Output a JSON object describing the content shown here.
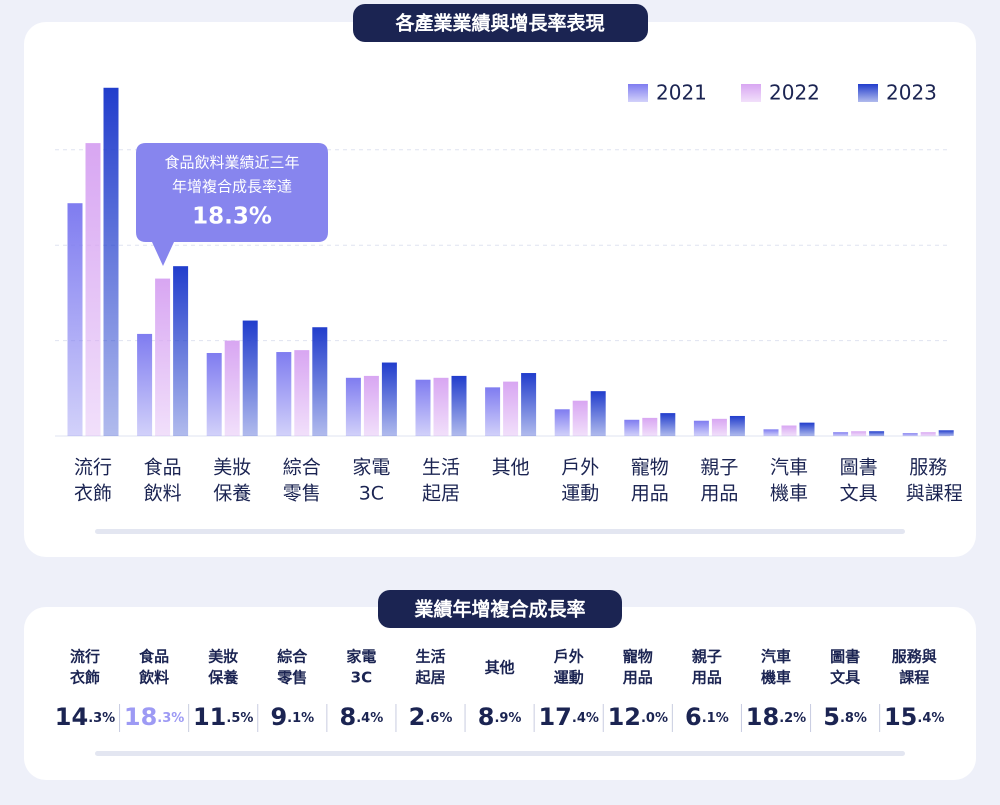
{
  "chart_data": {
    "type": "bar",
    "title": "各產業業績與增長率表現",
    "categories": [
      [
        "流行",
        "衣飾"
      ],
      [
        "食品",
        "飲料"
      ],
      [
        "美妝",
        "保養"
      ],
      [
        "綜合",
        "零售"
      ],
      [
        "家電",
        "3C"
      ],
      [
        "生活",
        "起居"
      ],
      [
        "其他"
      ],
      [
        "戶外",
        "運動"
      ],
      [
        "寵物",
        "用品"
      ],
      [
        "親子",
        "用品"
      ],
      [
        "汽車",
        "機車"
      ],
      [
        "圖書",
        "文具"
      ],
      [
        "服務",
        "與課程"
      ]
    ],
    "series": [
      {
        "name": "2021",
        "color": "#7f7cf0",
        "values": [
          244,
          107,
          87,
          88,
          61,
          59,
          51,
          28,
          17,
          16,
          7,
          4,
          3
        ]
      },
      {
        "name": "2022",
        "color": "#d8a6f2",
        "values": [
          307,
          165,
          100,
          90,
          63,
          61,
          57,
          37,
          19,
          18,
          11,
          5,
          4
        ]
      },
      {
        "name": "2023",
        "color": "#213dcc",
        "values": [
          365,
          178,
          121,
          114,
          77,
          63,
          66,
          47,
          24,
          21,
          14,
          5,
          6
        ]
      }
    ],
    "ylim": [
      0,
      370
    ],
    "yticks": [
      0,
      100,
      200,
      300
    ],
    "ytick_labels": false,
    "grid": true,
    "legend": "top-right",
    "annotation": [
      "食品飲料業績近三年",
      "年增複合成長率達",
      "18.3%"
    ]
  },
  "table": {
    "title": "業績年增複合成長率",
    "columns": [
      [
        "流行",
        "衣飾"
      ],
      [
        "食品",
        "飲料"
      ],
      [
        "美妝",
        "保養"
      ],
      [
        "綜合",
        "零售"
      ],
      [
        "家電",
        "3C"
      ],
      [
        "生活",
        "起居"
      ],
      [
        "其他"
      ],
      [
        "戶外",
        "運動"
      ],
      [
        "寵物",
        "用品"
      ],
      [
        "親子",
        "用品"
      ],
      [
        "汽車",
        "機車"
      ],
      [
        "圖書",
        "文具"
      ],
      [
        "服務與",
        "課程"
      ]
    ],
    "rates": [
      "14.3%",
      "18.3%",
      "11.5%",
      "9.1%",
      "8.4%",
      "2.6%",
      "8.9%",
      "17.4%",
      "12.0%",
      "6.1%",
      "18.2%",
      "5.8%",
      "15.4%"
    ],
    "highlight": 1
  }
}
